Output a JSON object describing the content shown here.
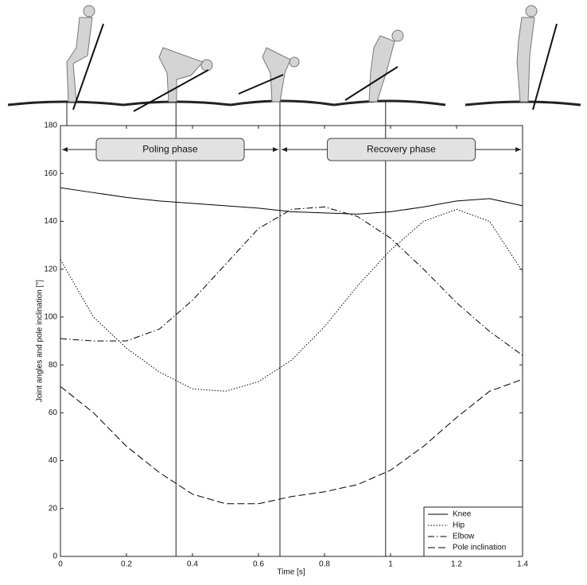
{
  "chart_data": {
    "type": "line",
    "xlabel": "Time [s]",
    "ylabel": "Joint angles and pole inclination [°]",
    "x": [
      0,
      0.1,
      0.2,
      0.3,
      0.4,
      0.5,
      0.6,
      0.7,
      0.8,
      0.9,
      1.0,
      1.1,
      1.2,
      1.3,
      1.4
    ],
    "series": [
      {
        "name": "Knee",
        "color": "#000000",
        "dash": "solid",
        "values": [
          154,
          152,
          150,
          148.5,
          147.5,
          146.5,
          145.5,
          144,
          143.5,
          143,
          144,
          146,
          148.5,
          149.5,
          146.5
        ]
      },
      {
        "name": "Hip",
        "color": "#000000",
        "dash": "dotted",
        "values": [
          124,
          100,
          87,
          77,
          70,
          69,
          73,
          82,
          96,
          113,
          128,
          140,
          145,
          140,
          119
        ]
      },
      {
        "name": "Elbow",
        "color": "#000000",
        "dash": "dashdot",
        "values": [
          91,
          90,
          90,
          95,
          107,
          122,
          137,
          145,
          146,
          142,
          133,
          120,
          106,
          94,
          84
        ]
      },
      {
        "name": "Pole inclination",
        "color": "#000000",
        "dash": "dashed",
        "values": [
          71,
          60,
          46,
          35,
          26,
          22,
          22,
          25,
          27,
          30,
          36,
          46,
          58,
          69,
          74
        ]
      }
    ],
    "xlim": [
      0,
      1.4
    ],
    "xticks": [
      0,
      0.2,
      0.4,
      0.6,
      0.8,
      1,
      1.2,
      1.4
    ],
    "ylim": [
      0,
      180
    ],
    "yticks": [
      0,
      20,
      40,
      60,
      80,
      100,
      120,
      140,
      160,
      180
    ],
    "vertical_lines": [
      0.35,
      0.665,
      0.985
    ],
    "phases": [
      {
        "label": "Poling phase",
        "start": 0,
        "end": 0.665
      },
      {
        "label": "Recovery phase",
        "start": 0.665,
        "end": 1.4
      }
    ],
    "phase_level": 170,
    "legend": "lower right"
  }
}
